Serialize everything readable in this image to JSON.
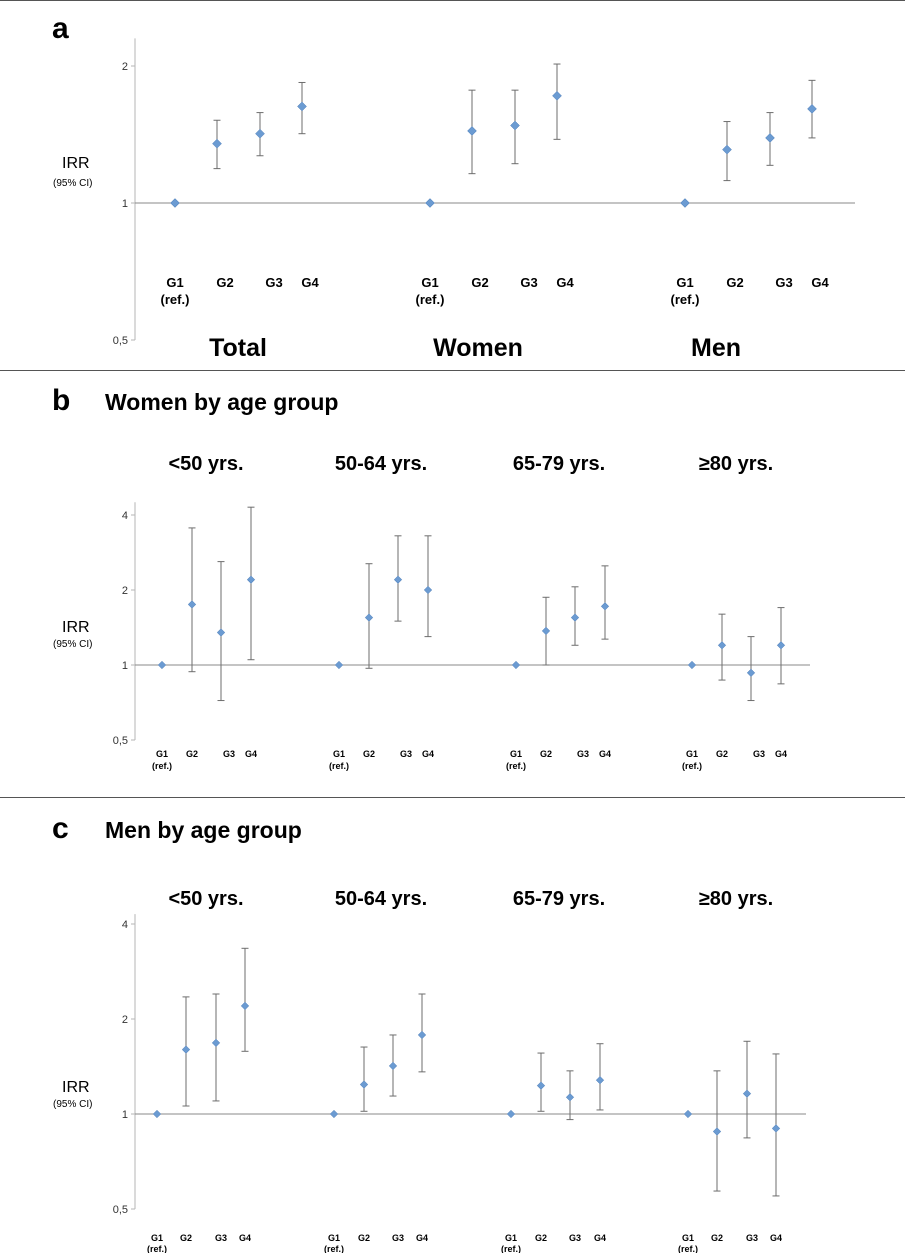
{
  "chart_data": [
    {
      "panel": "a",
      "type": "scatter",
      "title": "",
      "ylabel": "IRR",
      "ylabel_sub": "(95% CI)",
      "yscale": "log",
      "ylim": [
        0.5,
        2.3
      ],
      "yticks": [
        "0,5",
        "1",
        "2"
      ],
      "reference_line": 1,
      "categories": [
        "G1\n(ref.)",
        "G2",
        "G3",
        "G4"
      ],
      "groups": [
        {
          "name": "Total",
          "values": [
            1.0,
            1.35,
            1.42,
            1.63
          ],
          "lower": [
            1.0,
            1.19,
            1.27,
            1.42
          ],
          "upper": [
            1.0,
            1.52,
            1.58,
            1.84
          ]
        },
        {
          "name": "Women",
          "values": [
            1.0,
            1.44,
            1.48,
            1.72
          ],
          "lower": [
            1.0,
            1.16,
            1.22,
            1.38
          ],
          "upper": [
            1.0,
            1.77,
            1.77,
            2.02
          ]
        },
        {
          "name": "Men",
          "values": [
            1.0,
            1.31,
            1.39,
            1.61
          ],
          "lower": [
            1.0,
            1.12,
            1.21,
            1.39
          ],
          "upper": [
            1.0,
            1.51,
            1.58,
            1.86
          ]
        }
      ]
    },
    {
      "panel": "b",
      "type": "scatter",
      "title": "Women by age group",
      "ylabel": "IRR",
      "ylabel_sub": "(95% CI)",
      "yscale": "log",
      "ylim": [
        0.5,
        4.5
      ],
      "yticks": [
        "0,5",
        "1",
        "2",
        "4"
      ],
      "reference_line": 1,
      "categories": [
        "G1\n(ref.)",
        "G2",
        "G3",
        "G4"
      ],
      "groups": [
        {
          "name": "<50 yrs.",
          "values": [
            1.0,
            1.75,
            1.35,
            2.2
          ],
          "lower": [
            1.0,
            0.94,
            0.72,
            1.05
          ],
          "upper": [
            1.0,
            3.55,
            2.6,
            4.3
          ]
        },
        {
          "name": "50-64 yrs.",
          "values": [
            1.0,
            1.55,
            2.2,
            2.0
          ],
          "lower": [
            1.0,
            0.97,
            1.5,
            1.3
          ],
          "upper": [
            1.0,
            2.55,
            3.3,
            3.3
          ]
        },
        {
          "name": "65-79 yrs.",
          "values": [
            1.0,
            1.37,
            1.55,
            1.72
          ],
          "lower": [
            1.0,
            1.0,
            1.2,
            1.27
          ],
          "upper": [
            1.0,
            1.87,
            2.06,
            2.5
          ]
        },
        {
          "name": "≥80 yrs.",
          "values": [
            1.0,
            1.2,
            0.93,
            1.2
          ],
          "lower": [
            1.0,
            0.87,
            0.72,
            0.84
          ],
          "upper": [
            1.0,
            1.6,
            1.3,
            1.7
          ]
        }
      ]
    },
    {
      "panel": "c",
      "type": "scatter",
      "title": "Men by age group",
      "ylabel": "IRR",
      "ylabel_sub": "(95% CI)",
      "yscale": "log",
      "ylim": [
        0.5,
        4.3
      ],
      "yticks": [
        "0,5",
        "1",
        "2",
        "4"
      ],
      "reference_line": 1,
      "categories": [
        "G1\n(ref.)",
        "G2",
        "G3",
        "G4"
      ],
      "groups": [
        {
          "name": "<50 yrs.",
          "values": [
            1.0,
            1.6,
            1.68,
            2.2
          ],
          "lower": [
            1.0,
            1.06,
            1.1,
            1.58
          ],
          "upper": [
            1.0,
            2.35,
            2.4,
            3.35
          ]
        },
        {
          "name": "50-64 yrs.",
          "values": [
            1.0,
            1.24,
            1.42,
            1.78
          ],
          "lower": [
            1.0,
            1.02,
            1.14,
            1.36
          ],
          "upper": [
            1.0,
            1.63,
            1.78,
            2.4
          ]
        },
        {
          "name": "65-79 yrs.",
          "values": [
            1.0,
            1.23,
            1.13,
            1.28
          ],
          "lower": [
            1.0,
            1.02,
            0.96,
            1.03
          ],
          "upper": [
            1.0,
            1.56,
            1.37,
            1.67
          ]
        },
        {
          "name": "≥80 yrs.",
          "values": [
            1.0,
            0.88,
            1.16,
            0.9
          ],
          "lower": [
            1.0,
            0.57,
            0.84,
            0.55
          ],
          "upper": [
            1.0,
            1.37,
            1.7,
            1.55
          ]
        }
      ]
    }
  ]
}
